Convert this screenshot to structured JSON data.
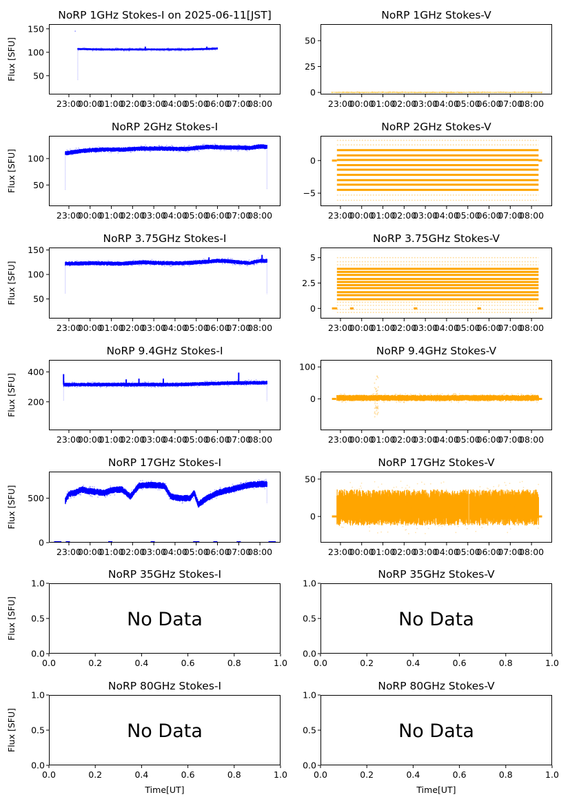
{
  "figure": {
    "date_label": "2025-06-11[JST]",
    "x_axis_label": "Time[UT]",
    "y_axis_label": "Flux [SFU]",
    "colors": {
      "stokes_i": "#0000ff",
      "stokes_v": "#ffa500"
    },
    "no_data_text": "No Data"
  },
  "chart_data": [
    {
      "id": "1ghz-i",
      "type": "scatter",
      "title": "NoRP 1GHz Stokes-I on 2025-06-11[JST]",
      "ylabel": "Flux [SFU]",
      "xlabel": "",
      "ylim": [
        10,
        160
      ],
      "yticks": [
        50,
        100,
        150
      ],
      "xticks": [
        "23:00",
        "00:00",
        "01:00",
        "02:00",
        "03:00",
        "04:00",
        "05:00",
        "06:00",
        "07:00",
        "08:00"
      ],
      "series": [
        {
          "name": "Stokes-I",
          "color": "#0000ff",
          "t_start": "23:25",
          "t_end": "06:00",
          "baseline": [
            [
              23.42,
              107
            ],
            [
              24.5,
              106
            ],
            [
              25.5,
              106
            ],
            [
              26.5,
              106
            ],
            [
              27.5,
              106
            ],
            [
              28.5,
              106
            ],
            [
              29.5,
              107
            ],
            [
              30.0,
              108
            ]
          ],
          "spread": 2,
          "spikes": [
            [
              26.6,
              112
            ],
            [
              29.5,
              112
            ]
          ],
          "dips": [
            [
              23.42,
              40
            ]
          ],
          "outliers": [
            [
              23.3,
              145
            ]
          ]
        }
      ],
      "has_data": true
    },
    {
      "id": "1ghz-v",
      "type": "scatter",
      "title": "NoRP 1GHz Stokes-V",
      "ylabel": "",
      "xlabel": "",
      "ylim": [
        -2,
        66
      ],
      "yticks": [
        0,
        25,
        50
      ],
      "xticks": [
        "23:00",
        "00:00",
        "01:00",
        "02:00",
        "03:00",
        "04:00",
        "05:00",
        "06:00",
        "07:00",
        "08:00"
      ],
      "series": [
        {
          "name": "Stokes-V",
          "color": "#ffa500",
          "t_start": "22:35",
          "t_end": "08:30",
          "baseline": [
            [
              22.6,
              0
            ],
            [
              32.5,
              0
            ]
          ],
          "spread": 0.3
        }
      ],
      "has_data": true
    },
    {
      "id": "2ghz-i",
      "type": "scatter",
      "title": "NoRP 2GHz Stokes-I",
      "ylabel": "Flux [SFU]",
      "xlabel": "",
      "ylim": [
        10,
        143
      ],
      "yticks": [
        50,
        100
      ],
      "xticks": [
        "23:00",
        "00:00",
        "01:00",
        "02:00",
        "03:00",
        "04:00",
        "05:00",
        "06:00",
        "07:00",
        "08:00"
      ],
      "series": [
        {
          "name": "Stokes-I",
          "color": "#0000ff",
          "t_start": "22:50",
          "t_end": "08:20",
          "baseline": [
            [
              22.83,
              110
            ],
            [
              23.5,
              114
            ],
            [
              24.5,
              117
            ],
            [
              25.5,
              117
            ],
            [
              26.5,
              119
            ],
            [
              27.5,
              119
            ],
            [
              28.5,
              118
            ],
            [
              29.5,
              122
            ],
            [
              30.5,
              121
            ],
            [
              31.5,
              120
            ],
            [
              32.0,
              123
            ],
            [
              32.33,
              122
            ]
          ],
          "spread": 4,
          "dips": [
            [
              22.83,
              40
            ],
            [
              32.33,
              42
            ]
          ]
        }
      ],
      "has_data": true
    },
    {
      "id": "2ghz-v",
      "type": "scatter",
      "title": "NoRP 2GHz Stokes-V",
      "ylabel": "",
      "xlabel": "",
      "ylim": [
        -7,
        3.8
      ],
      "yticks": [
        -5,
        0
      ],
      "xticks": [
        "23:00",
        "00:00",
        "01:00",
        "02:00",
        "03:00",
        "04:00",
        "05:00",
        "06:00",
        "07:00",
        "08:00"
      ],
      "series": [
        {
          "name": "Stokes-V",
          "color": "#ffa500",
          "t_start": "22:50",
          "t_end": "08:20",
          "levels": [
            3.1,
            2.4,
            1.6,
            0.8,
            0.1,
            -0.7,
            -1.4,
            -2.2,
            -3.0,
            -3.7,
            -4.5,
            -5.3,
            -6.1
          ],
          "strong_levels": [
            1.6,
            0.8,
            0.1,
            -0.7,
            -1.4,
            -2.2,
            -3.0,
            -3.7,
            -4.5
          ],
          "zero_segments": [
            [
              22.6,
              22.83
            ],
            [
              32.33,
              32.5
            ]
          ]
        }
      ],
      "has_data": true
    },
    {
      "id": "3.75ghz-i",
      "type": "scatter",
      "title": "NoRP 3.75GHz Stokes-I",
      "ylabel": "Flux [SFU]",
      "xlabel": "",
      "ylim": [
        10,
        155
      ],
      "yticks": [
        50,
        100,
        150
      ],
      "xticks": [
        "23:00",
        "00:00",
        "01:00",
        "02:00",
        "03:00",
        "04:00",
        "05:00",
        "06:00",
        "07:00",
        "08:00"
      ],
      "series": [
        {
          "name": "Stokes-I",
          "color": "#0000ff",
          "t_start": "22:50",
          "t_end": "08:20",
          "baseline": [
            [
              22.83,
              122
            ],
            [
              24.0,
              123
            ],
            [
              25.5,
              122
            ],
            [
              26.5,
              125
            ],
            [
              27.5,
              123
            ],
            [
              28.5,
              123
            ],
            [
              29.5,
              126
            ],
            [
              30.0,
              128
            ],
            [
              30.5,
              127
            ],
            [
              31.5,
              123
            ],
            [
              32.0,
              128
            ],
            [
              32.33,
              128
            ]
          ],
          "spread": 4,
          "spikes": [
            [
              29.6,
              135
            ],
            [
              32.1,
              140
            ]
          ],
          "dips": [
            [
              22.83,
              60
            ],
            [
              32.33,
              60
            ]
          ]
        }
      ],
      "has_data": true
    },
    {
      "id": "3.75ghz-v",
      "type": "scatter",
      "title": "NoRP 3.75GHz Stokes-V",
      "ylabel": "",
      "xlabel": "",
      "ylim": [
        -1.0,
        6.0
      ],
      "yticks": [
        0.0,
        2.5,
        5.0
      ],
      "xticks": [
        "23:00",
        "00:00",
        "01:00",
        "02:00",
        "03:00",
        "04:00",
        "05:00",
        "06:00",
        "07:00",
        "08:00"
      ],
      "series": [
        {
          "name": "Stokes-V",
          "color": "#ffa500",
          "t_start": "22:50",
          "t_end": "08:20",
          "levels": [
            5.0,
            4.6,
            4.3,
            3.9,
            3.6,
            3.3,
            2.9,
            2.6,
            2.3,
            2.0,
            1.6,
            1.3,
            0.9,
            0.6,
            0.3,
            -0.1,
            -0.4
          ],
          "strong_levels": [
            3.9,
            3.6,
            3.3,
            2.9,
            2.6,
            2.3,
            2.0,
            1.6,
            1.3,
            0.9
          ],
          "zero_segments": [
            [
              22.6,
              22.85
            ],
            [
              23.45,
              23.62
            ],
            [
              26.45,
              26.62
            ],
            [
              29.45,
              29.62
            ],
            [
              32.33,
              32.55
            ]
          ]
        }
      ],
      "has_data": true
    },
    {
      "id": "9.4ghz-i",
      "type": "scatter",
      "title": "NoRP 9.4GHz Stokes-I",
      "ylabel": "Flux [SFU]",
      "xlabel": "",
      "ylim": [
        10,
        480
      ],
      "yticks": [
        200,
        400
      ],
      "xticks": [
        "23:00",
        "00:00",
        "01:00",
        "02:00",
        "03:00",
        "04:00",
        "05:00",
        "06:00",
        "07:00",
        "08:00"
      ],
      "series": [
        {
          "name": "Stokes-I",
          "color": "#0000ff",
          "t_start": "22:45",
          "t_end": "08:20",
          "baseline": [
            [
              22.75,
              315
            ],
            [
              24.0,
              315
            ],
            [
              26.0,
              315
            ],
            [
              28.0,
              315
            ],
            [
              29.5,
              320
            ],
            [
              30.5,
              325
            ],
            [
              32.33,
              328
            ]
          ],
          "spread": 12,
          "spikes": [
            [
              22.75,
              385
            ],
            [
              25.7,
              350
            ],
            [
              26.3,
              355
            ],
            [
              27.45,
              355
            ],
            [
              31.0,
              395
            ]
          ],
          "dips": [
            [
              22.75,
              205
            ],
            [
              32.33,
              205
            ]
          ]
        }
      ],
      "has_data": true
    },
    {
      "id": "9.4ghz-v",
      "type": "scatter",
      "title": "NoRP 9.4GHz Stokes-V",
      "ylabel": "",
      "xlabel": "",
      "ylim": [
        -98,
        122
      ],
      "yticks": [
        0,
        100
      ],
      "xticks": [
        "23:00",
        "00:00",
        "01:00",
        "02:00",
        "03:00",
        "04:00",
        "05:00",
        "06:00",
        "07:00",
        "08:00"
      ],
      "series": [
        {
          "name": "Stokes-V",
          "color": "#ffa500",
          "t_start": "22:50",
          "t_end": "08:20",
          "baseline": [
            [
              22.8,
              3
            ],
            [
              32.33,
              3
            ]
          ],
          "spread": 9,
          "burst": [
            [
              24.7,
              80,
              -60
            ]
          ],
          "zero_segments": [
            [
              22.6,
              22.8
            ],
            [
              32.33,
              32.5
            ]
          ]
        }
      ],
      "has_data": true
    },
    {
      "id": "17ghz-i",
      "type": "scatter",
      "title": "NoRP 17GHz Stokes-I",
      "ylabel": "Flux [SFU]",
      "xlabel": "",
      "ylim": [
        0,
        800
      ],
      "yticks": [
        0,
        500
      ],
      "xticks": [
        "23:00",
        "00:00",
        "01:00",
        "02:00",
        "03:00",
        "04:00",
        "05:00",
        "06:00",
        "07:00",
        "08:00"
      ],
      "series": [
        {
          "name": "Stokes-I",
          "color": "#0000ff",
          "t_start": "22:50",
          "t_end": "08:20",
          "baseline": [
            [
              22.83,
              470
            ],
            [
              23.0,
              550
            ],
            [
              23.3,
              560
            ],
            [
              23.6,
              600
            ],
            [
              23.9,
              580
            ],
            [
              24.3,
              570
            ],
            [
              24.7,
              560
            ],
            [
              25.0,
              590
            ],
            [
              25.5,
              600
            ],
            [
              25.9,
              520
            ],
            [
              26.3,
              640
            ],
            [
              26.8,
              650
            ],
            [
              27.5,
              640
            ],
            [
              27.8,
              520
            ],
            [
              28.2,
              500
            ],
            [
              28.7,
              500
            ],
            [
              28.9,
              560
            ],
            [
              29.1,
              430
            ],
            [
              29.5,
              500
            ],
            [
              30.0,
              560
            ],
            [
              30.5,
              590
            ],
            [
              31.0,
              620
            ],
            [
              31.5,
              650
            ],
            [
              32.0,
              660
            ],
            [
              32.33,
              660
            ]
          ],
          "spread": 35,
          "dips": [
            [
              32.33,
              440
            ]
          ]
        }
      ],
      "zero_markers": [
        22.4,
        22.55,
        22.95,
        24.95,
        26.95,
        28.95,
        29.05,
        29.9,
        31.0,
        32.5,
        32.65
      ],
      "has_data": true
    },
    {
      "id": "17ghz-v",
      "type": "scatter",
      "title": "NoRP 17GHz Stokes-V",
      "ylabel": "",
      "xlabel": "",
      "ylim": [
        -35,
        60
      ],
      "yticks": [
        0,
        50
      ],
      "xticks": [
        "23:00",
        "00:00",
        "01:00",
        "02:00",
        "03:00",
        "04:00",
        "05:00",
        "06:00",
        "07:00",
        "08:00"
      ],
      "series": [
        {
          "name": "Stokes-V",
          "color": "#ffa500",
          "t_start": "22:50",
          "t_end": "08:20",
          "baseline": [
            [
              22.83,
              12
            ],
            [
              32.33,
              12
            ]
          ],
          "spread": 22,
          "gap": 29.05,
          "zero_segments": [
            [
              22.6,
              22.83
            ],
            [
              32.33,
              32.5
            ]
          ]
        }
      ],
      "has_data": true
    },
    {
      "id": "35ghz-i",
      "type": "empty",
      "title": "NoRP 35GHz Stokes-I",
      "ylabel": "Flux [SFU]",
      "xlabel": "",
      "ylim": [
        0.0,
        1.0
      ],
      "xlim": [
        0.0,
        1.0
      ],
      "yticks": [
        "0.0",
        "0.5",
        "1.0"
      ],
      "xticks_num": [
        "0.0",
        "0.2",
        "0.4",
        "0.6",
        "0.8",
        "1.0"
      ],
      "annotation": "No Data",
      "has_data": false
    },
    {
      "id": "35ghz-v",
      "type": "empty",
      "title": "NoRP 35GHz Stokes-V",
      "ylabel": "",
      "xlabel": "",
      "ylim": [
        0.0,
        1.0
      ],
      "xlim": [
        0.0,
        1.0
      ],
      "yticks": [
        "0.0",
        "0.5",
        "1.0"
      ],
      "xticks_num": [
        "0.0",
        "0.2",
        "0.4",
        "0.6",
        "0.8",
        "1.0"
      ],
      "annotation": "No Data",
      "has_data": false
    },
    {
      "id": "80ghz-i",
      "type": "empty",
      "title": "NoRP 80GHz Stokes-I",
      "ylabel": "Flux [SFU]",
      "xlabel": "Time[UT]",
      "ylim": [
        0.0,
        1.0
      ],
      "xlim": [
        0.0,
        1.0
      ],
      "yticks": [
        "0.0",
        "0.5",
        "1.0"
      ],
      "xticks_num": [
        "0.0",
        "0.2",
        "0.4",
        "0.6",
        "0.8",
        "1.0"
      ],
      "annotation": "No Data",
      "has_data": false
    },
    {
      "id": "80ghz-v",
      "type": "empty",
      "title": "NoRP 80GHz Stokes-V",
      "ylabel": "",
      "xlabel": "Time[UT]",
      "ylim": [
        0.0,
        1.0
      ],
      "xlim": [
        0.0,
        1.0
      ],
      "yticks": [
        "0.0",
        "0.5",
        "1.0"
      ],
      "xticks_num": [
        "0.0",
        "0.2",
        "0.4",
        "0.6",
        "0.8",
        "1.0"
      ],
      "annotation": "No Data",
      "has_data": false
    }
  ]
}
